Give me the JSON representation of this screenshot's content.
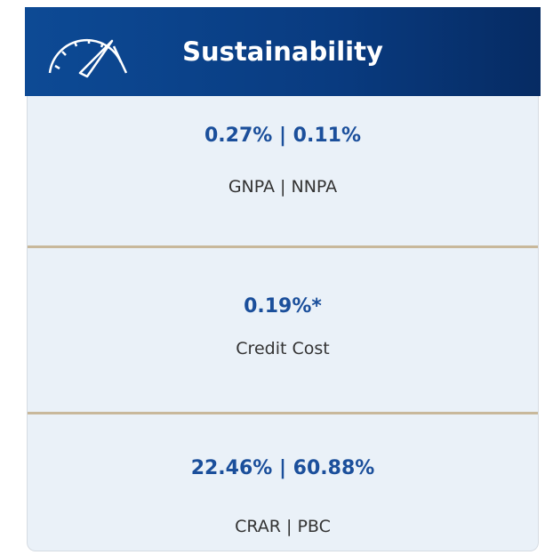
{
  "header": {
    "title": "Sustainability"
  },
  "sections": [
    {
      "value": "0.27% | 0.11%",
      "label": "GNPA | NNPA"
    },
    {
      "value": "0.19%*",
      "label": "Credit Cost"
    },
    {
      "value": "22.46% | 60.88%",
      "label": "CRAR | PBC"
    }
  ]
}
